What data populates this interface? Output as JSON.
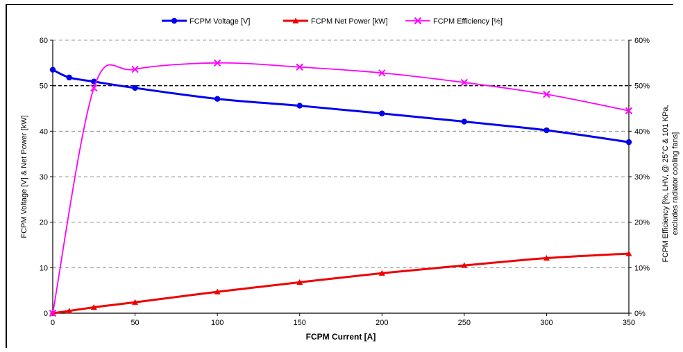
{
  "chart_data": {
    "type": "line",
    "title": "",
    "legend": {
      "placement": "top-center",
      "entries": [
        "FCPM Voltage [V]",
        "FCPM Net Power [kW]",
        "FCPM Efficiency [%]"
      ]
    },
    "xlabel": "FCPM Current [A]",
    "ylabel": "FCPM Voltage [V] & Net Power [kW]",
    "y2label_line1": "FCPM Efficiency [%, LHV, @ 25°C & 101 KPa,",
    "y2label_line2": "excludes radiator cooling fans]",
    "xlim": [
      0,
      350
    ],
    "ylim": [
      0,
      60
    ],
    "y2lim": [
      0,
      60
    ],
    "x_ticks": [
      "0",
      "50",
      "100",
      "150",
      "200",
      "250",
      "300",
      "350"
    ],
    "y_ticks": [
      "0",
      "10",
      "20",
      "30",
      "40",
      "50",
      "60"
    ],
    "y2_ticks": [
      "0%",
      "10%",
      "20%",
      "30%",
      "40%",
      "50%",
      "60%"
    ],
    "grid": "horizontal dashed",
    "series": [
      {
        "name": "FCPM Voltage [V]",
        "axis": "left",
        "color": "#0000ee",
        "marker": "diamond",
        "x": [
          0,
          10,
          25,
          50,
          100,
          150,
          200,
          250,
          300,
          350
        ],
        "y": [
          53.5,
          51.8,
          50.9,
          49.5,
          47.1,
          45.6,
          43.9,
          42.1,
          40.2,
          37.6
        ]
      },
      {
        "name": "FCPM Net Power [kW]",
        "axis": "left",
        "color": "#ee0000",
        "marker": "triangle",
        "x": [
          0,
          10,
          25,
          50,
          100,
          150,
          200,
          250,
          300,
          350
        ],
        "y": [
          0,
          0.5,
          1.3,
          2.4,
          4.7,
          6.8,
          8.8,
          10.5,
          12.1,
          13.1
        ]
      },
      {
        "name": "FCPM Efficiency [%]",
        "axis": "right",
        "color": "#ff00ff",
        "marker": "x",
        "x": [
          0,
          25,
          50,
          100,
          150,
          200,
          250,
          300,
          350
        ],
        "y": [
          0,
          49.5,
          53.6,
          55.0,
          54.1,
          52.8,
          50.7,
          48.1,
          44.5
        ]
      }
    ]
  }
}
